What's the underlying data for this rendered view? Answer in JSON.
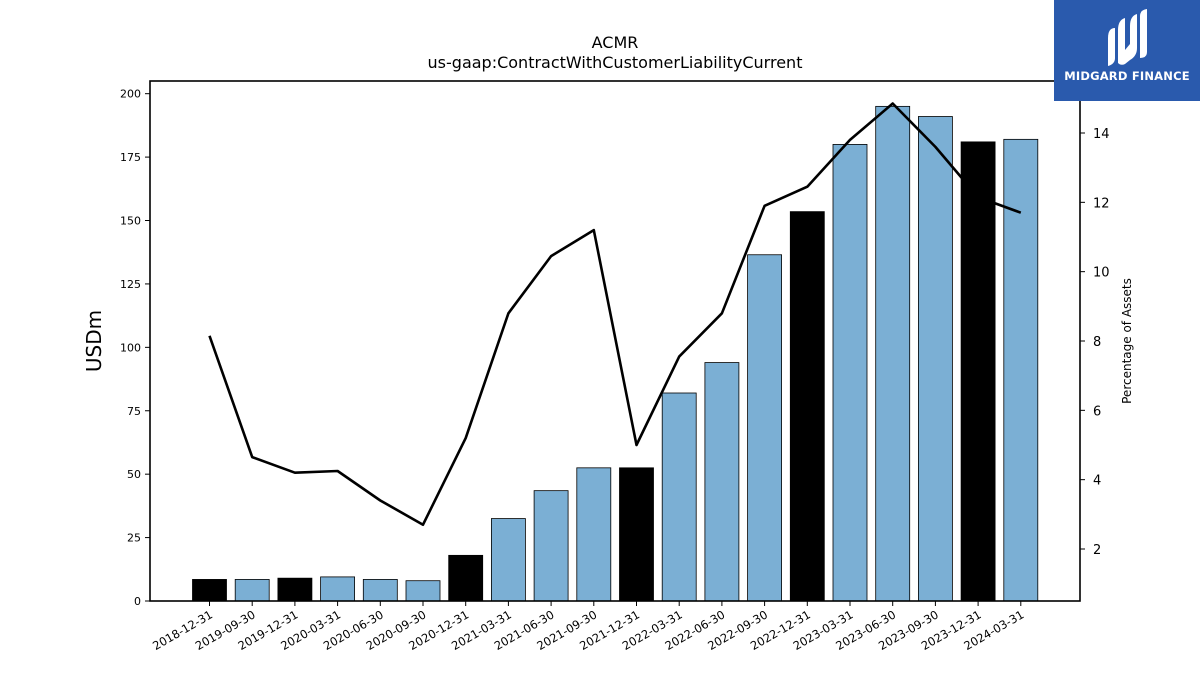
{
  "brand": {
    "name": "MIDGARD FINANCE",
    "color": "#2a5aad"
  },
  "chart_data": {
    "type": "bar",
    "title": "ACMR",
    "subtitle": "us-gaap:ContractWithCustomerLiabilityCurrent",
    "ylabel": "USDm",
    "y2label": "Percentage of Assets",
    "categories": [
      "2018-12-31",
      "2019-09-30",
      "2019-12-31",
      "2020-03-31",
      "2020-06-30",
      "2020-09-30",
      "2020-12-31",
      "2021-03-31",
      "2021-06-30",
      "2021-09-30",
      "2021-12-31",
      "2022-03-31",
      "2022-06-30",
      "2022-09-30",
      "2022-12-31",
      "2023-03-31",
      "2023-06-30",
      "2023-09-30",
      "2023-12-31",
      "2024-03-31"
    ],
    "series": [
      {
        "type": "bar",
        "values": [
          8.5,
          8.5,
          9.0,
          9.5,
          8.5,
          8.0,
          18.0,
          32.5,
          43.5,
          52.5,
          52.5,
          82.0,
          94.0,
          136.5,
          153.5,
          180.0,
          195.0,
          191.0,
          181.0,
          182.0
        ],
        "colors": [
          "#000000",
          "#7bafd4",
          "#000000",
          "#7bafd4",
          "#7bafd4",
          "#7bafd4",
          "#000000",
          "#7bafd4",
          "#7bafd4",
          "#7bafd4",
          "#000000",
          "#7bafd4",
          "#7bafd4",
          "#7bafd4",
          "#000000",
          "#7bafd4",
          "#7bafd4",
          "#7bafd4",
          "#000000",
          "#7bafd4"
        ]
      },
      {
        "type": "line",
        "axis": "right",
        "color": "#000000",
        "values": [
          8.15,
          4.65,
          4.2,
          4.25,
          3.4,
          2.7,
          5.2,
          8.8,
          10.45,
          11.2,
          5.0,
          7.55,
          8.8,
          11.9,
          12.45,
          13.8,
          14.85,
          13.6,
          12.15,
          11.7
        ]
      }
    ],
    "ylim": [
      0,
      205
    ],
    "y2lim": [
      0.5,
      15.5
    ],
    "yticks": [
      "0",
      "25",
      "50",
      "75",
      "100",
      "125",
      "150",
      "175",
      "200"
    ],
    "y2ticks": [
      "2",
      "4",
      "6",
      "8",
      "10",
      "12",
      "14"
    ],
    "grid": false,
    "legend": "none"
  }
}
